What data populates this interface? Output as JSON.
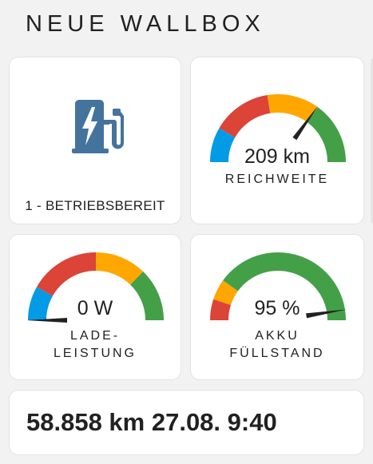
{
  "header": {
    "title": "NEUE WALLBOX"
  },
  "status_card": {
    "icon": "ev-charging-station-icon",
    "icon_color": "#44739e",
    "label": "1 - BETRIEBSBEREIT"
  },
  "gauges": {
    "range": {
      "value": 209,
      "value_text": "209 km",
      "label_lines": [
        "REICHWEITE"
      ],
      "min": 0,
      "max": 300,
      "fill_color": "#43a047",
      "segments": [
        {
          "from": 0,
          "to": 50,
          "color": "#039be5"
        },
        {
          "from": 50,
          "to": 135,
          "color": "#db4437"
        },
        {
          "from": 135,
          "to": 210,
          "color": "#ffa600"
        },
        {
          "from": 210,
          "to": 300,
          "color": "#43a047"
        }
      ]
    },
    "charging_power": {
      "value": 0,
      "value_text": "0 W",
      "label_lines": [
        "LADE-",
        "LEISTUNG"
      ],
      "min": 0,
      "max": 11000,
      "fill_color": "#43a047",
      "segments": [
        {
          "from": 0,
          "to": 1800,
          "color": "#039be5"
        },
        {
          "from": 1800,
          "to": 5500,
          "color": "#db4437"
        },
        {
          "from": 5500,
          "to": 8200,
          "color": "#ffa600"
        },
        {
          "from": 8200,
          "to": 11000,
          "color": "#43a047"
        }
      ]
    },
    "battery_level": {
      "value": 95,
      "value_text": "95 %",
      "label_lines": [
        "AKKU",
        "FÜLLSTAND"
      ],
      "min": 0,
      "max": 100,
      "fill_color": "#43a047",
      "segments": [
        {
          "from": 0,
          "to": 10,
          "color": "#db4437"
        },
        {
          "from": 10,
          "to": 20,
          "color": "#ffa600"
        },
        {
          "from": 20,
          "to": 100,
          "color": "#43a047"
        }
      ]
    }
  },
  "summary_card": {
    "text": "58.858 km 27.08. 9:40"
  }
}
